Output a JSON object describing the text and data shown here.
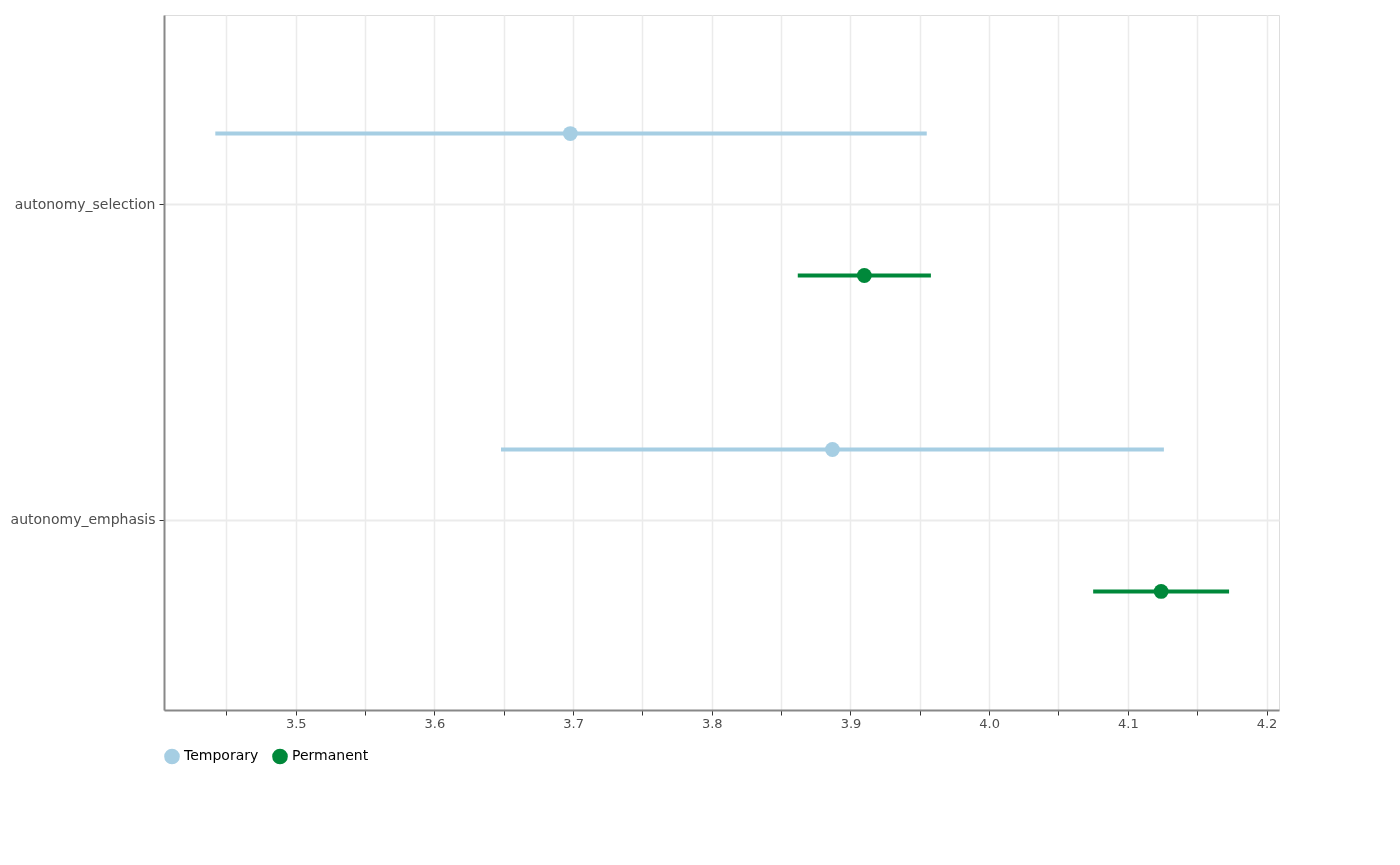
{
  "chart_data": {
    "type": "scatter",
    "orientation": "horizontal",
    "categories": [
      "autonomy_selection",
      "autonomy_emphasis"
    ],
    "series": [
      {
        "name": "Temporary",
        "color": "#a6cee3",
        "values": [
          3.698,
          3.887
        ],
        "errors": [
          [
            3.442,
            3.955
          ],
          [
            3.648,
            4.126
          ]
        ]
      },
      {
        "name": "Permanent",
        "color": "#00883a",
        "values": [
          3.91,
          4.124
        ],
        "errors": [
          [
            3.862,
            3.958
          ],
          [
            4.075,
            4.173
          ]
        ]
      }
    ],
    "xlim": [
      3.405,
      4.209
    ],
    "xticks": [
      {
        "value": 3.45,
        "label": null
      },
      3.5,
      {
        "value": 3.55,
        "label": null
      },
      3.6,
      {
        "value": 3.65,
        "label": null
      },
      3.7,
      {
        "value": 3.75,
        "label": null
      },
      3.8,
      {
        "value": 3.85,
        "label": null
      },
      3.9,
      {
        "value": 3.95,
        "label": null
      },
      {
        "value": 4.0,
        "label": "4.0"
      },
      {
        "value": 4.05,
        "label": null
      },
      4.1,
      {
        "value": 4.15,
        "label": null
      },
      4.2
    ],
    "grid": true,
    "legend": "bottom"
  }
}
